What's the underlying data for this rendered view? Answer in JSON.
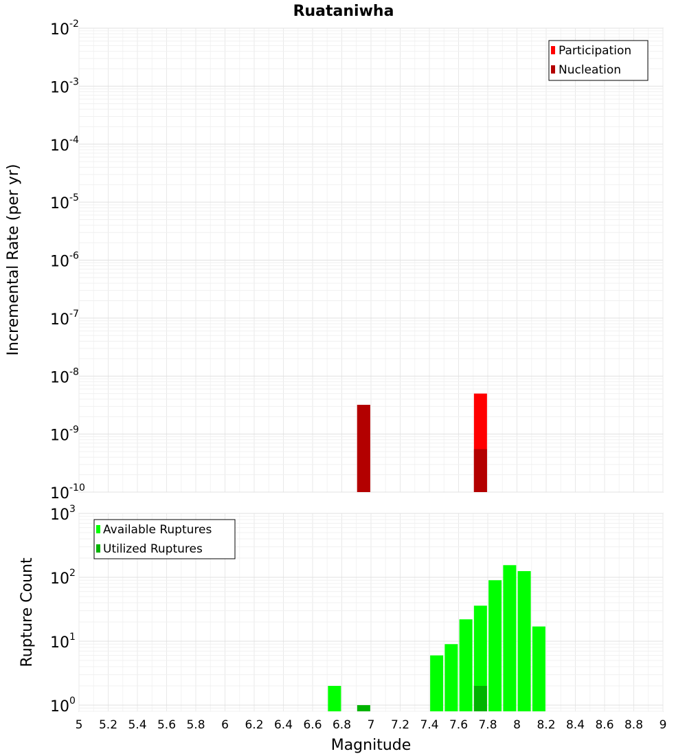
{
  "chart_data": [
    {
      "type": "bar",
      "title": "Ruataniwha",
      "ylabel": "Incremental Rate (per yr)",
      "yscale": "log",
      "ylim": [
        1e-10,
        0.01
      ],
      "xlim": [
        5,
        9
      ],
      "y_tick_labels": [
        {
          "base": "10",
          "exp": "-2"
        },
        {
          "base": "10",
          "exp": "-3"
        },
        {
          "base": "10",
          "exp": "-4"
        },
        {
          "base": "10",
          "exp": "-5"
        },
        {
          "base": "10",
          "exp": "-6"
        },
        {
          "base": "10",
          "exp": "-7"
        },
        {
          "base": "10",
          "exp": "-8"
        },
        {
          "base": "10",
          "exp": "-9"
        },
        {
          "base": "10",
          "exp": "-10"
        }
      ],
      "legend_position": "top-right",
      "series": [
        {
          "name": "Participation",
          "color": "#ff0000",
          "x": [
            6.95,
            7.75
          ],
          "values": [
            3.2e-09,
            5e-09
          ]
        },
        {
          "name": "Nucleation",
          "color": "#b30000",
          "x": [
            6.95,
            7.75
          ],
          "values": [
            3.2e-09,
            5.5e-10
          ]
        }
      ]
    },
    {
      "type": "bar",
      "ylabel": "Rupture Count",
      "xlabel": "Magnitude",
      "yscale": "log",
      "ylim": [
        0.8,
        1000
      ],
      "xlim": [
        5,
        9
      ],
      "y_tick_labels": [
        {
          "base": "10",
          "exp": "3"
        },
        {
          "base": "10",
          "exp": "2"
        },
        {
          "base": "10",
          "exp": "1"
        },
        {
          "base": "10",
          "exp": "0"
        }
      ],
      "x_tick_labels": [
        "5",
        "5.2",
        "5.4",
        "5.6",
        "5.8",
        "6",
        "6.2",
        "6.4",
        "6.6",
        "6.8",
        "7",
        "7.2",
        "7.4",
        "7.6",
        "7.8",
        "8",
        "8.2",
        "8.4",
        "8.6",
        "8.8",
        "9"
      ],
      "legend_position": "top-left",
      "series": [
        {
          "name": "Available Ruptures",
          "color": "#00ff00",
          "x": [
            6.75,
            7.45,
            7.55,
            7.65,
            7.75,
            7.85,
            7.95,
            8.05,
            8.15
          ],
          "values": [
            2,
            6,
            9,
            22,
            36,
            90,
            155,
            125,
            17
          ]
        },
        {
          "name": "Utilized Ruptures",
          "color": "#00b300",
          "x": [
            6.95,
            7.75
          ],
          "values": [
            1,
            2
          ]
        }
      ]
    }
  ]
}
